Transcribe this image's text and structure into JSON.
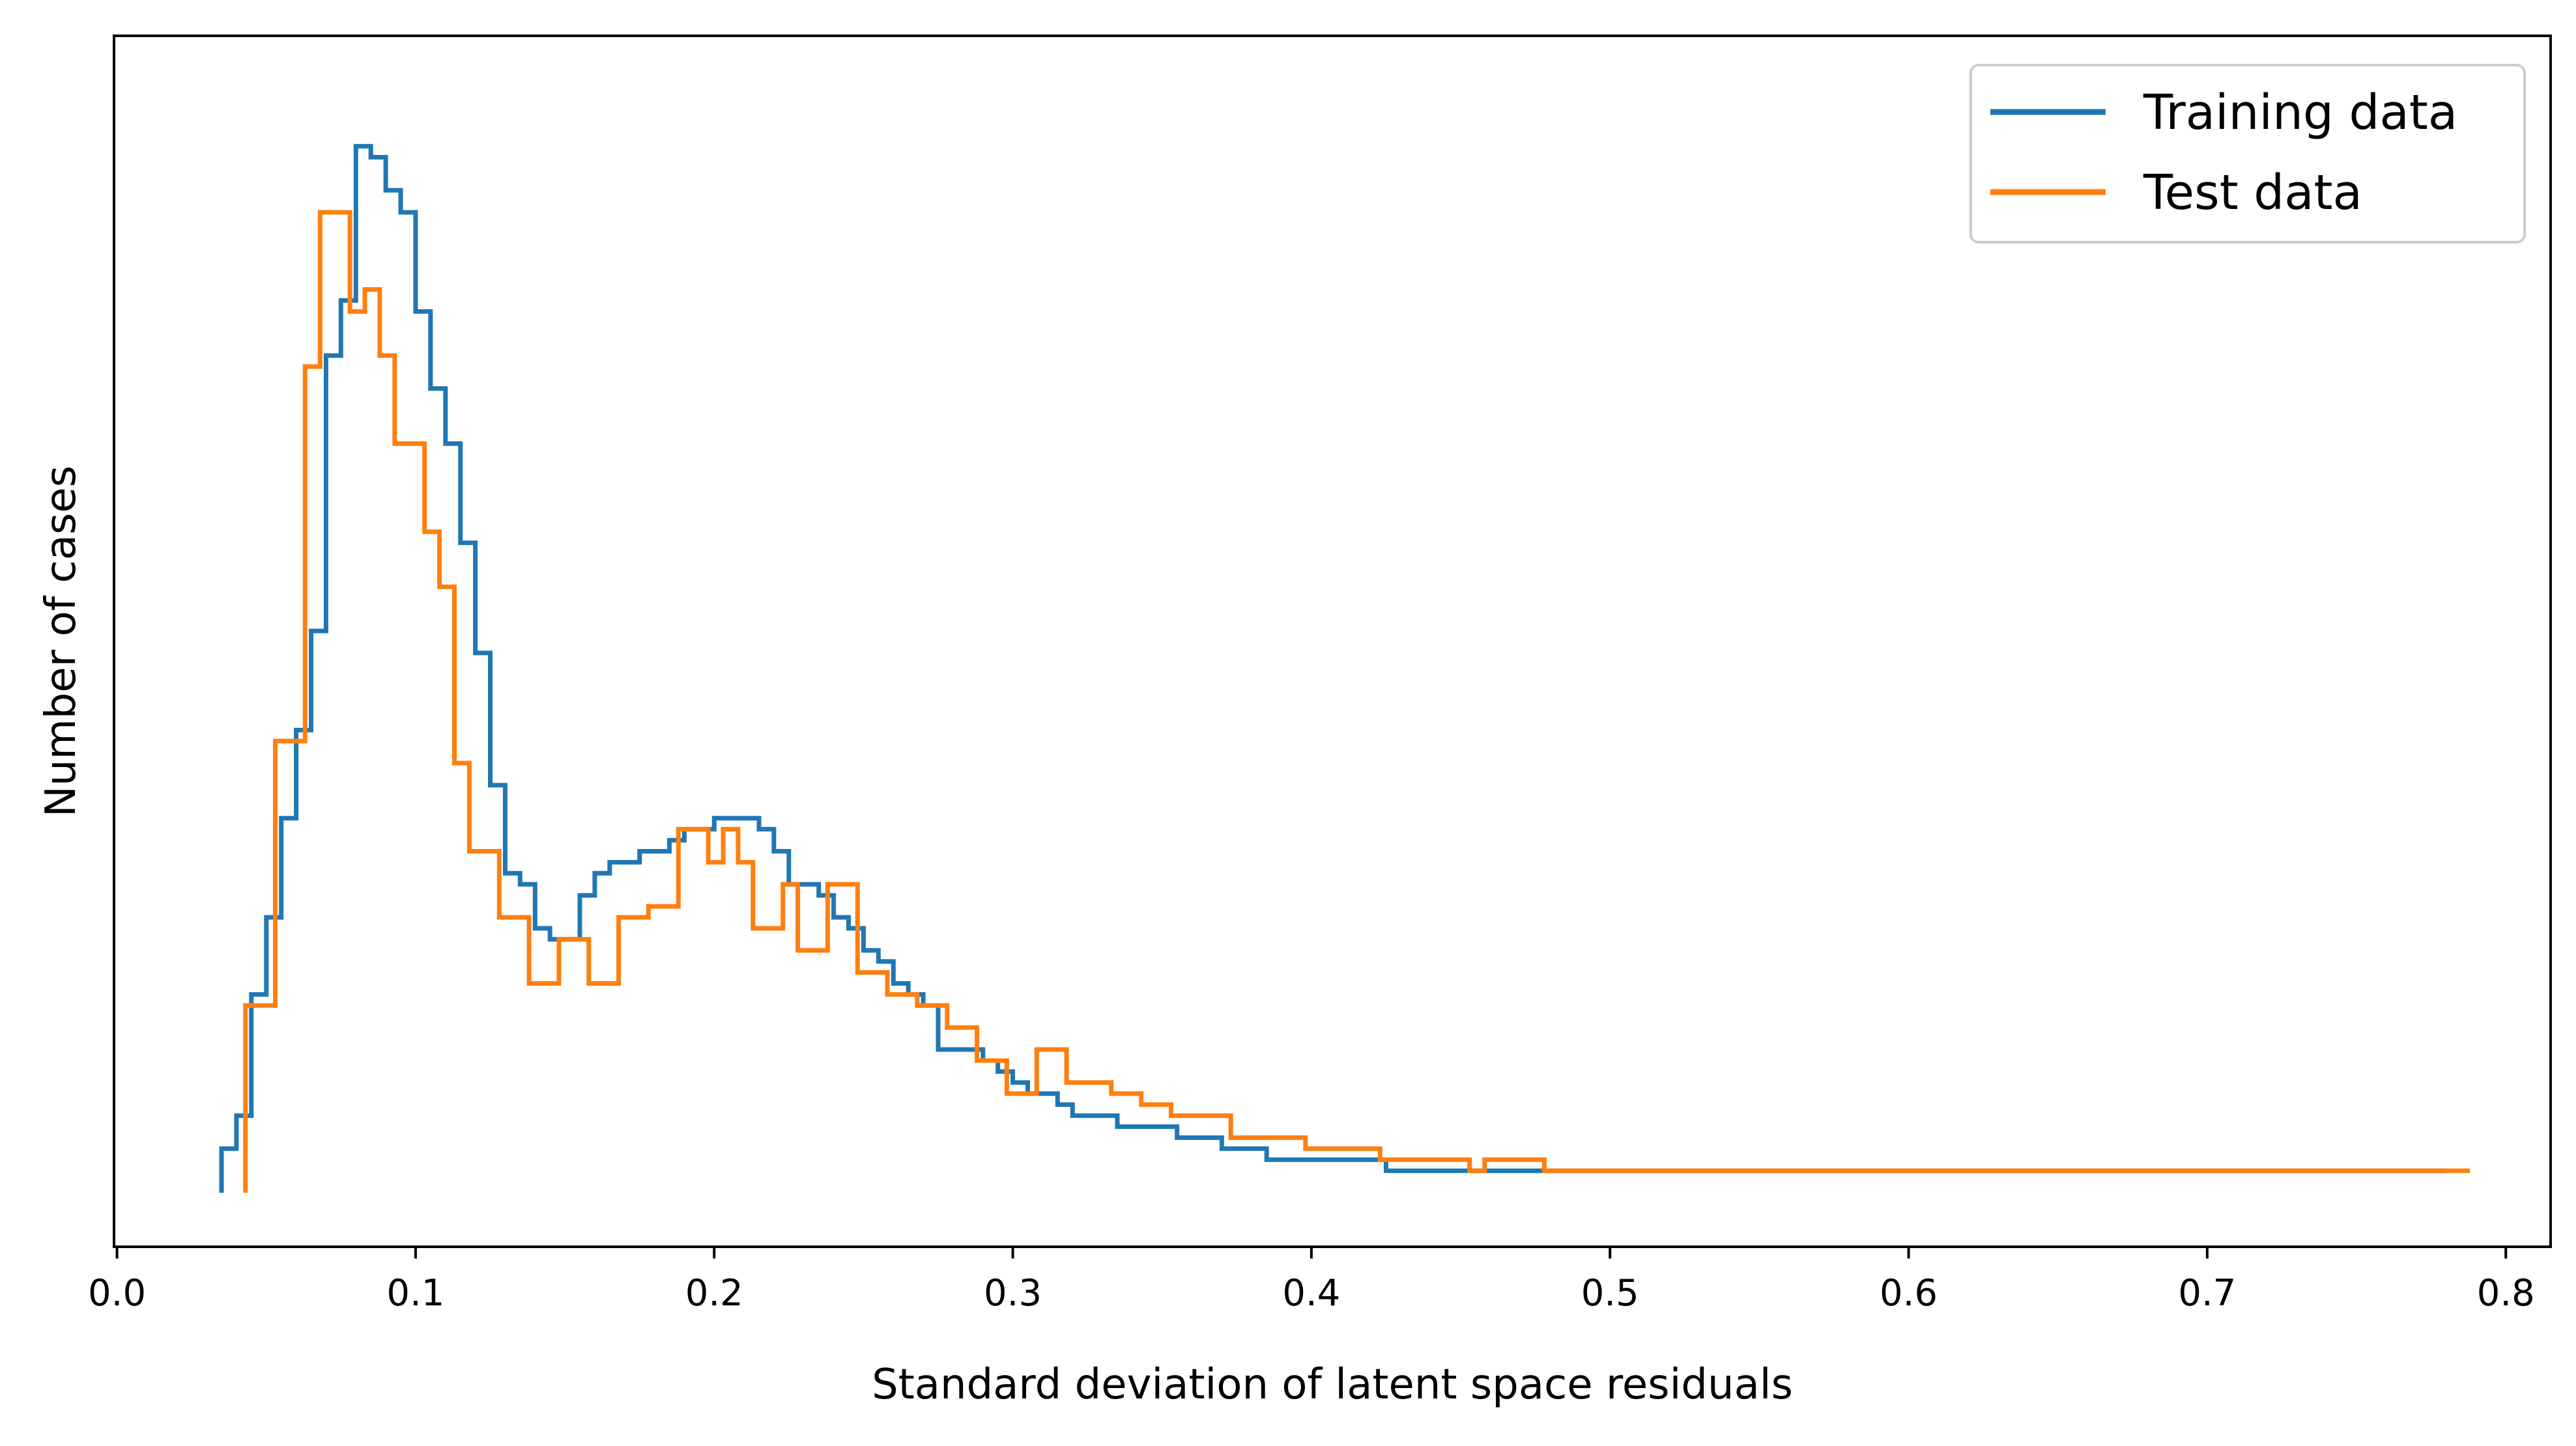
{
  "chart_data": {
    "type": "histogram-step",
    "title": "",
    "xlabel": "Standard deviation of latent space residuals",
    "ylabel": "Number of cases",
    "xlim": [
      -0.001,
      0.815
    ],
    "ylim": [
      0,
      100
    ],
    "x_ticks": [
      "0.0",
      "0.1",
      "0.2",
      "0.3",
      "0.4",
      "0.5",
      "0.6",
      "0.7",
      "0.8"
    ],
    "x_tick_values": [
      0.0,
      0.1,
      0.2,
      0.3,
      0.4,
      0.5,
      0.6,
      0.7,
      0.8
    ],
    "y_ticks_shown": false,
    "legend_position": "top-right",
    "series": [
      {
        "name": "Training data",
        "color": "#1f77b4",
        "x_start": 0.035,
        "bin_width": 0.005,
        "values": [
          4,
          7,
          18,
          25,
          34,
          42,
          51,
          76,
          81,
          95,
          94,
          91,
          89,
          80,
          73,
          68,
          59,
          49,
          37,
          29,
          28,
          24,
          23,
          23,
          27,
          29,
          30,
          30,
          31,
          31,
          32,
          33,
          33,
          34,
          34,
          34,
          33,
          31,
          28,
          28,
          27,
          25,
          24,
          22,
          21,
          19,
          18,
          17,
          13,
          13,
          13,
          12,
          11,
          10,
          9,
          9,
          8,
          7,
          7,
          7,
          6,
          6,
          6,
          6,
          5,
          5,
          5,
          4,
          4,
          4,
          3,
          3,
          3,
          3,
          3,
          3,
          3,
          3,
          2,
          2,
          2,
          2,
          2,
          2,
          2,
          2,
          2,
          2,
          2,
          2,
          2,
          2,
          2,
          2,
          2,
          2,
          2,
          2,
          2,
          2,
          2,
          2,
          2,
          2,
          2,
          2,
          2,
          2,
          2,
          2,
          2,
          2,
          2,
          2,
          2,
          2,
          2,
          2,
          2,
          2,
          2,
          2,
          2,
          2,
          2,
          2,
          2,
          2,
          2,
          2,
          2,
          2,
          2,
          2,
          2,
          2,
          2,
          2,
          2,
          2,
          2,
          2,
          2,
          2,
          2,
          2,
          2,
          2,
          2
        ]
      },
      {
        "name": "Test data",
        "color": "#ff7f0e",
        "x_start": 0.043,
        "bin_width": 0.005,
        "values": [
          17,
          17,
          41,
          41,
          75,
          89,
          89,
          80,
          82,
          76,
          68,
          68,
          60,
          55,
          39,
          31,
          31,
          25,
          25,
          19,
          19,
          23,
          23,
          19,
          19,
          25,
          25,
          26,
          26,
          33,
          33,
          30,
          33,
          30,
          24,
          24,
          28,
          22,
          22,
          28,
          28,
          20,
          20,
          18,
          18,
          17,
          17,
          15,
          15,
          12,
          12,
          9,
          9,
          13,
          13,
          10,
          10,
          10,
          9,
          9,
          8,
          8,
          7,
          7,
          7,
          7,
          5,
          5,
          5,
          5,
          5,
          4,
          4,
          4,
          4,
          4,
          3,
          3,
          3,
          3,
          3,
          3,
          2,
          3,
          3,
          3,
          3,
          2,
          2,
          2,
          2,
          2,
          2,
          2,
          2,
          2,
          2,
          2,
          2,
          2,
          2,
          2,
          2,
          2,
          2,
          2,
          2,
          2,
          2,
          2,
          2,
          2,
          2,
          2,
          2,
          2,
          2,
          2,
          2,
          2,
          2,
          2,
          2,
          2,
          2,
          2,
          2,
          2,
          2,
          2,
          2,
          2,
          2,
          2,
          2,
          2,
          2,
          2,
          2,
          2,
          2,
          2,
          2,
          2,
          2,
          2,
          2,
          2,
          2
        ]
      }
    ]
  }
}
